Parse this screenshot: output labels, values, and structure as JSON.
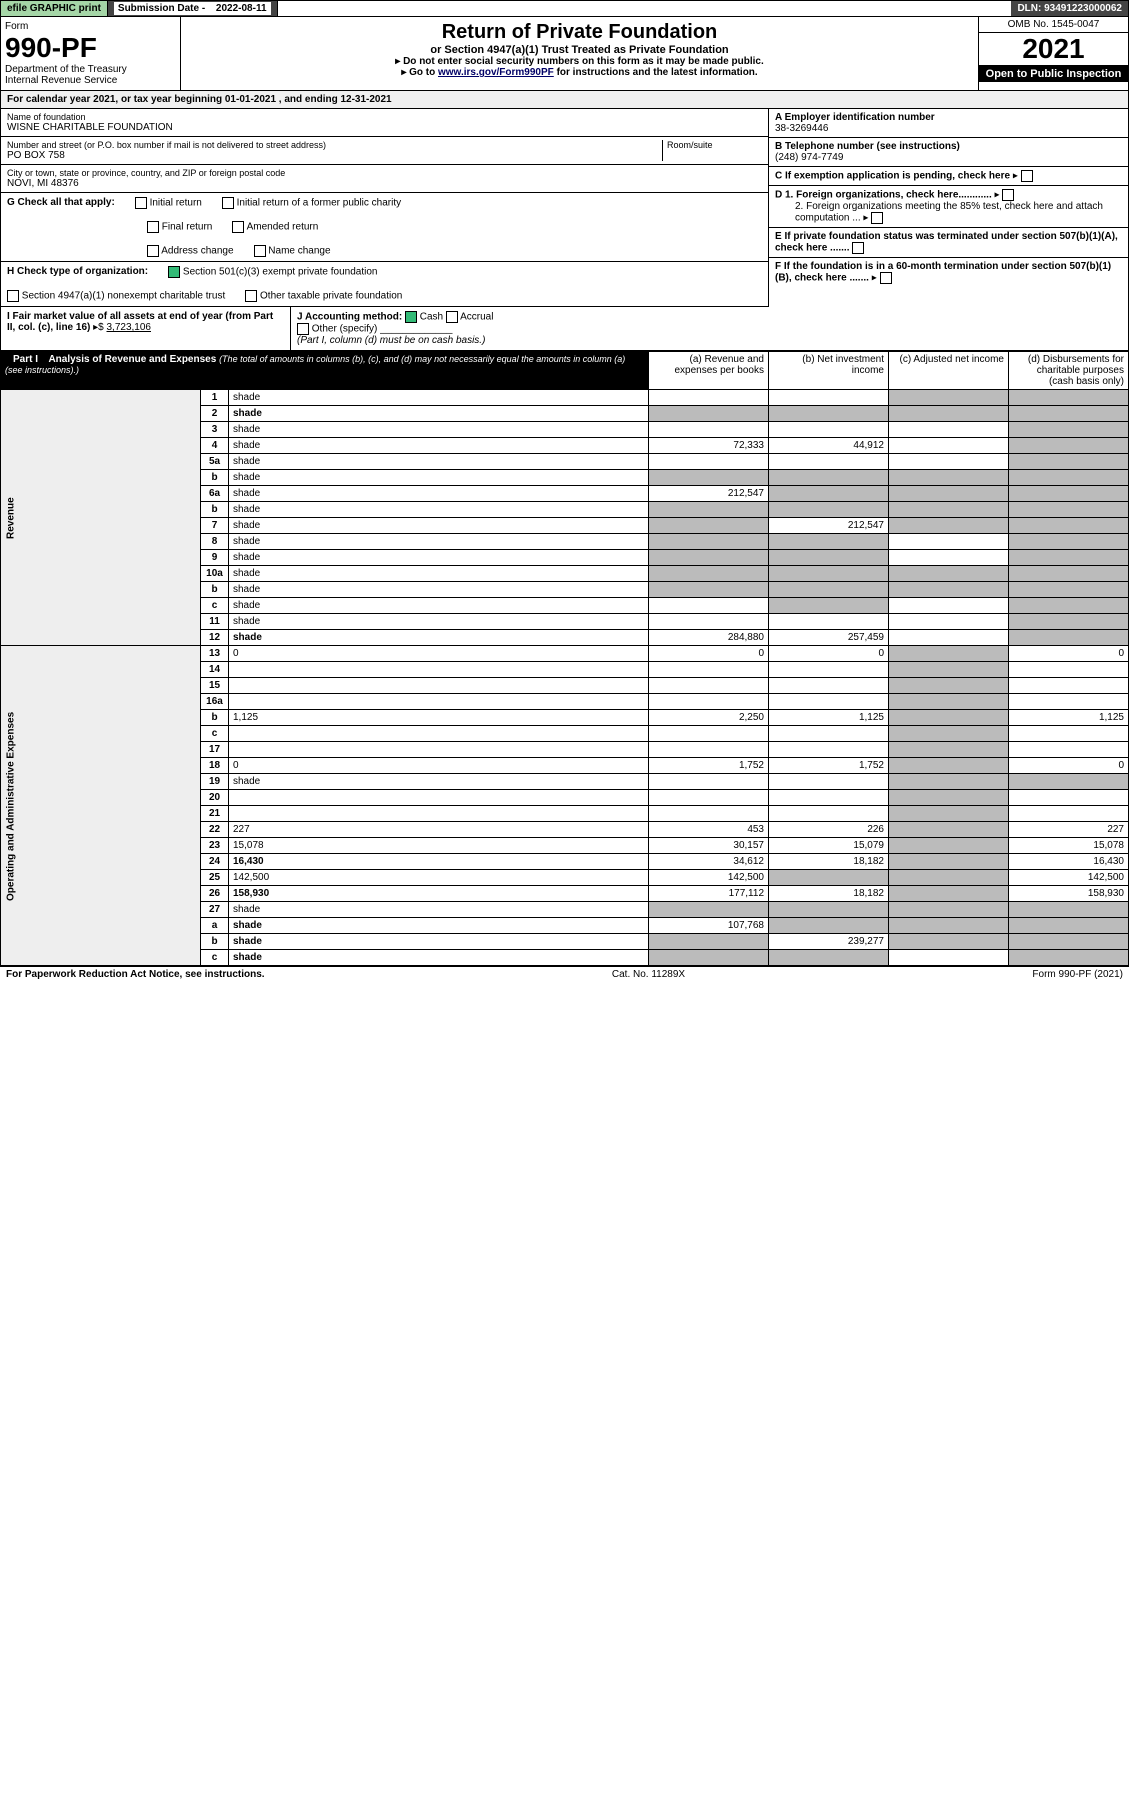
{
  "topbar": {
    "print": "efile GRAPHIC print",
    "subdate_label": "Submission Date - ",
    "subdate": "2022-08-11",
    "dln_label": "DLN: ",
    "dln": "93491223000062"
  },
  "header": {
    "form_label": "Form",
    "form_no": "990-PF",
    "dept": "Department of the Treasury\nInternal Revenue Service",
    "title": "Return of Private Foundation",
    "subtitle": "or Section 4947(a)(1) Trust Treated as Private Foundation",
    "note1": "▸ Do not enter social security numbers on this form as it may be made public.",
    "note2_pre": "▸ Go to ",
    "note2_link": "www.irs.gov/Form990PF",
    "note2_post": " for instructions and the latest information.",
    "omb": "OMB No. 1545-0047",
    "year": "2021",
    "inspect": "Open to Public Inspection"
  },
  "calyear": "For calendar year 2021, or tax year beginning 01-01-2021            , and ending 12-31-2021",
  "entity": {
    "name_label": "Name of foundation",
    "name": "WISNE CHARITABLE FOUNDATION",
    "addr_label": "Number and street (or P.O. box number if mail is not delivered to street address)",
    "addr": "PO BOX 758",
    "room_label": "Room/suite",
    "city_label": "City or town, state or province, country, and ZIP or foreign postal code",
    "city": "NOVI, MI  48376",
    "ein_label": "A Employer identification number",
    "ein": "38-3269446",
    "phone_label": "B Telephone number (see instructions)",
    "phone": "(248) 974-7749",
    "c_label": "C If exemption application is pending, check here",
    "d1": "D 1. Foreign organizations, check here............",
    "d2": "2. Foreign organizations meeting the 85% test, check here and attach computation ...",
    "e_label": "E If private foundation status was terminated under section 507(b)(1)(A), check here .......",
    "f_label": "F If the foundation is in a 60-month termination under section 507(b)(1)(B), check here .......",
    "g_label": "G Check all that apply:",
    "g_opts": [
      "Initial return",
      "Final return",
      "Address change",
      "Initial return of a former public charity",
      "Amended return",
      "Name change"
    ],
    "h_label": "H Check type of organization:",
    "h_501": "Section 501(c)(3) exempt private foundation",
    "h_4947": "Section 4947(a)(1) nonexempt charitable trust",
    "h_other": "Other taxable private foundation",
    "i_label": "I Fair market value of all assets at end of year (from Part II, col. (c), line 16)",
    "i_val": "3,723,106",
    "j_label": "J Accounting method:",
    "j_cash": "Cash",
    "j_accrual": "Accrual",
    "j_other": "Other (specify)",
    "j_note": "(Part I, column (d) must be on cash basis.)"
  },
  "part1": {
    "title": "Part I",
    "subtitle": "Analysis of Revenue and Expenses",
    "subnote": "(The total of amounts in columns (b), (c), and (d) may not necessarily equal the amounts in column (a) (see instructions).)",
    "col_a": "(a) Revenue and expenses per books",
    "col_b": "(b) Net investment income",
    "col_c": "(c) Adjusted net income",
    "col_d": "(d) Disbursements for charitable purposes (cash basis only)",
    "side_rev": "Revenue",
    "side_exp": "Operating and Administrative Expenses"
  },
  "rows": [
    {
      "n": "1",
      "d": "shade",
      "a": "",
      "b": "",
      "c": "shade"
    },
    {
      "n": "2",
      "d": "shade",
      "a": "shade",
      "b": "shade",
      "c": "shade",
      "bold": true
    },
    {
      "n": "3",
      "d": "shade",
      "a": "",
      "b": "",
      "c": ""
    },
    {
      "n": "4",
      "d": "shade",
      "a": "72,333",
      "b": "44,912",
      "c": ""
    },
    {
      "n": "5a",
      "d": "shade",
      "a": "",
      "b": "",
      "c": ""
    },
    {
      "n": "b",
      "d": "shade",
      "a": "shade",
      "b": "shade",
      "c": "shade"
    },
    {
      "n": "6a",
      "d": "shade",
      "a": "212,547",
      "b": "shade",
      "c": "shade"
    },
    {
      "n": "b",
      "d": "shade",
      "a": "shade",
      "b": "shade",
      "c": "shade"
    },
    {
      "n": "7",
      "d": "shade",
      "a": "shade",
      "b": "212,547",
      "c": "shade"
    },
    {
      "n": "8",
      "d": "shade",
      "a": "shade",
      "b": "shade",
      "c": ""
    },
    {
      "n": "9",
      "d": "shade",
      "a": "shade",
      "b": "shade",
      "c": ""
    },
    {
      "n": "10a",
      "d": "shade",
      "a": "shade",
      "b": "shade",
      "c": "shade"
    },
    {
      "n": "b",
      "d": "shade",
      "a": "shade",
      "b": "shade",
      "c": "shade"
    },
    {
      "n": "c",
      "d": "shade",
      "a": "",
      "b": "shade",
      "c": ""
    },
    {
      "n": "11",
      "d": "shade",
      "a": "",
      "b": "",
      "c": ""
    },
    {
      "n": "12",
      "d": "shade",
      "a": "284,880",
      "b": "257,459",
      "c": "",
      "bold": true
    },
    {
      "n": "13",
      "d": "0",
      "a": "0",
      "b": "0",
      "c": "shade"
    },
    {
      "n": "14",
      "d": "",
      "a": "",
      "b": "",
      "c": "shade"
    },
    {
      "n": "15",
      "d": "",
      "a": "",
      "b": "",
      "c": "shade"
    },
    {
      "n": "16a",
      "d": "",
      "a": "",
      "b": "",
      "c": "shade"
    },
    {
      "n": "b",
      "d": "1,125",
      "a": "2,250",
      "b": "1,125",
      "c": "shade"
    },
    {
      "n": "c",
      "d": "",
      "a": "",
      "b": "",
      "c": "shade"
    },
    {
      "n": "17",
      "d": "",
      "a": "",
      "b": "",
      "c": "shade"
    },
    {
      "n": "18",
      "d": "0",
      "a": "1,752",
      "b": "1,752",
      "c": "shade"
    },
    {
      "n": "19",
      "d": "shade",
      "a": "",
      "b": "",
      "c": "shade"
    },
    {
      "n": "20",
      "d": "",
      "a": "",
      "b": "",
      "c": "shade"
    },
    {
      "n": "21",
      "d": "",
      "a": "",
      "b": "",
      "c": "shade"
    },
    {
      "n": "22",
      "d": "227",
      "a": "453",
      "b": "226",
      "c": "shade"
    },
    {
      "n": "23",
      "d": "15,078",
      "a": "30,157",
      "b": "15,079",
      "c": "shade"
    },
    {
      "n": "24",
      "d": "16,430",
      "a": "34,612",
      "b": "18,182",
      "c": "shade",
      "bold": true
    },
    {
      "n": "25",
      "d": "142,500",
      "a": "142,500",
      "b": "shade",
      "c": "shade"
    },
    {
      "n": "26",
      "d": "158,930",
      "a": "177,112",
      "b": "18,182",
      "c": "shade",
      "bold": true
    },
    {
      "n": "27",
      "d": "shade",
      "a": "shade",
      "b": "shade",
      "c": "shade"
    },
    {
      "n": "a",
      "d": "shade",
      "a": "107,768",
      "b": "shade",
      "c": "shade",
      "bold": true
    },
    {
      "n": "b",
      "d": "shade",
      "a": "shade",
      "b": "239,277",
      "c": "shade",
      "bold": true
    },
    {
      "n": "c",
      "d": "shade",
      "a": "shade",
      "b": "shade",
      "c": "",
      "bold": true
    }
  ],
  "footer": {
    "left": "For Paperwork Reduction Act Notice, see instructions.",
    "mid": "Cat. No. 11289X",
    "right": "Form 990-PF (2021)"
  }
}
